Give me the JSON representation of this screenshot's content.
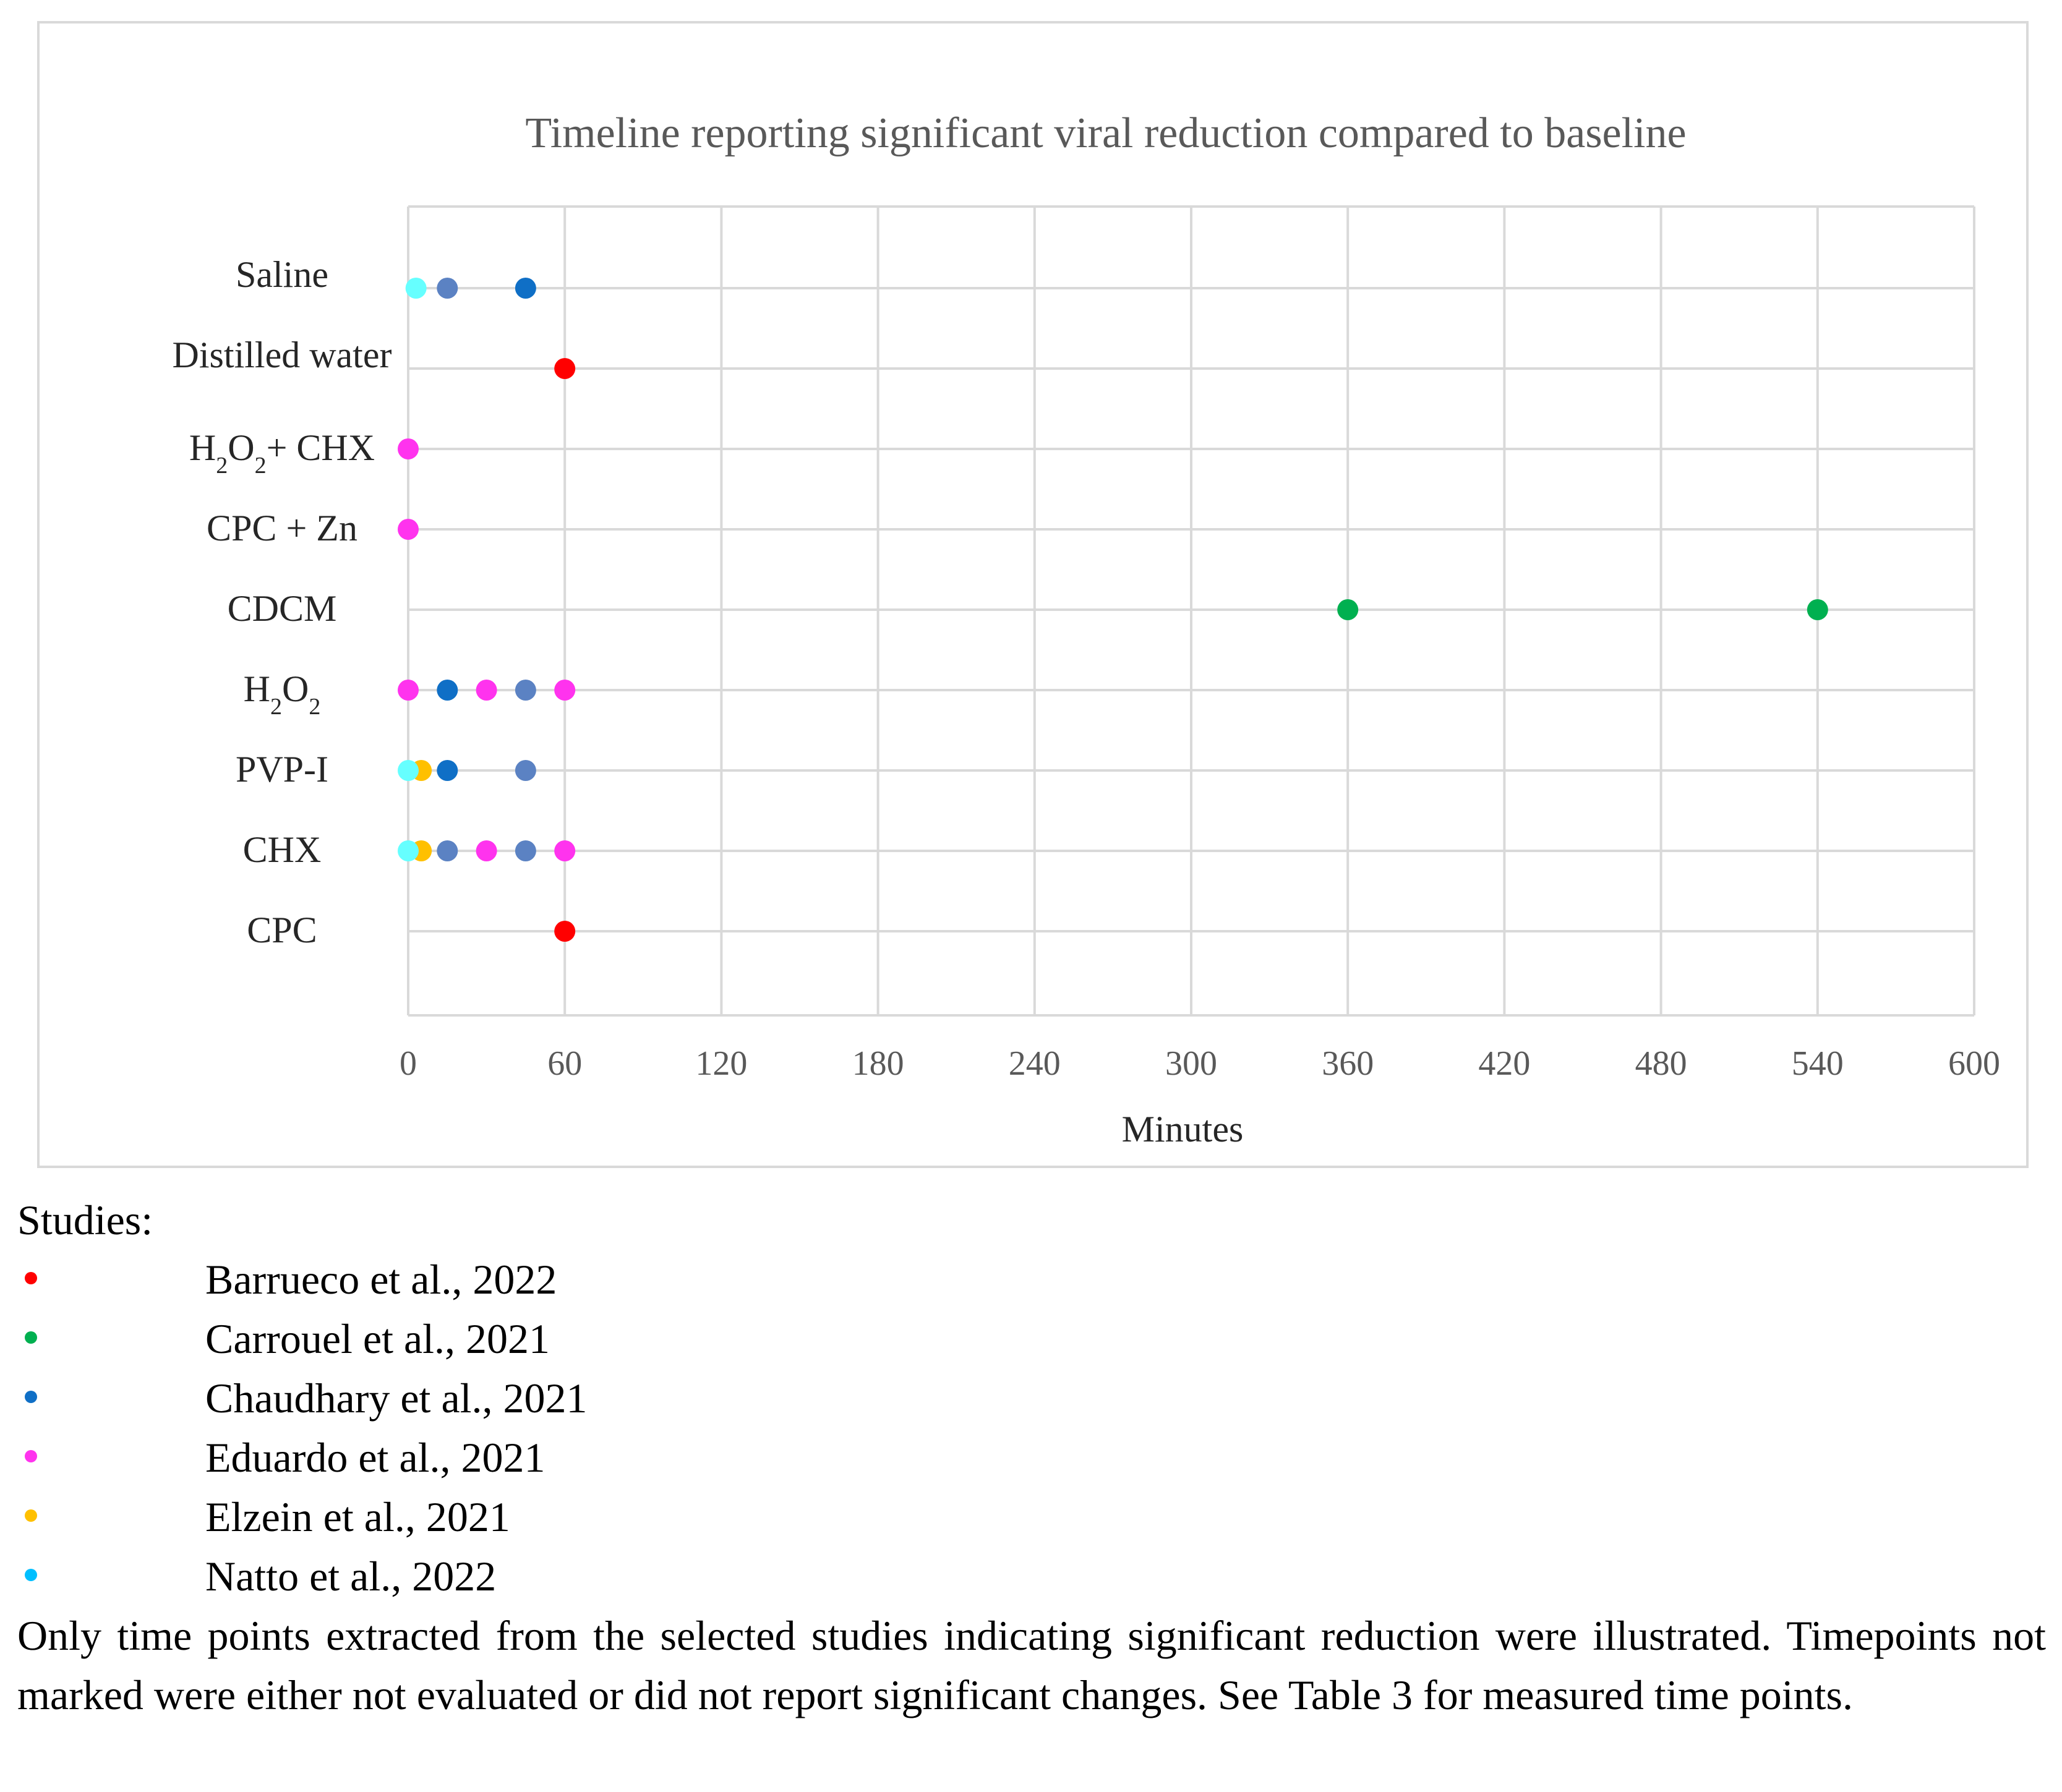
{
  "chart_data": {
    "type": "scatter",
    "title": "Timeline reporting significant viral reduction compared to baseline",
    "xlabel": "Minutes",
    "ylabel": "",
    "xlim": [
      0,
      600
    ],
    "x_ticks": [
      "0",
      "60",
      "120",
      "180",
      "240",
      "300",
      "360",
      "420",
      "480",
      "540",
      "600"
    ],
    "grid": true,
    "categories": [
      {
        "id": "saline",
        "label": "Saline"
      },
      {
        "id": "distilled",
        "label": "Distilled water"
      },
      {
        "id": "h2o2chx",
        "base": "H",
        "sub1": "2",
        "mid": "O",
        "sub2": "2",
        "tail": "+ CHX"
      },
      {
        "id": "cpczn",
        "label": "CPC + Zn"
      },
      {
        "id": "cdcm",
        "label": "CDCM"
      },
      {
        "id": "h2o2",
        "base": "H",
        "sub1": "2",
        "mid": "O",
        "sub2": "2",
        "tail": ""
      },
      {
        "id": "pvpi",
        "label": "PVP-I"
      },
      {
        "id": "chx",
        "label": "CHX"
      },
      {
        "id": "cpc",
        "label": "CPC"
      }
    ],
    "points": [
      {
        "category": "saline",
        "x": 3,
        "color": "#66ffff"
      },
      {
        "category": "saline",
        "x": 15,
        "color": "#5b82c3"
      },
      {
        "category": "saline",
        "x": 45,
        "color": "#0f6fc6"
      },
      {
        "category": "distilled",
        "x": 60,
        "color": "#ff0000"
      },
      {
        "category": "h2o2chx",
        "x": 0,
        "color": "#ff33ee"
      },
      {
        "category": "cpczn",
        "x": 0,
        "color": "#ff33ee"
      },
      {
        "category": "cdcm",
        "x": 360,
        "color": "#00b050"
      },
      {
        "category": "cdcm",
        "x": 540,
        "color": "#00b050"
      },
      {
        "category": "h2o2",
        "x": 0,
        "color": "#ff33ee"
      },
      {
        "category": "h2o2",
        "x": 15,
        "color": "#0f6fc6"
      },
      {
        "category": "h2o2",
        "x": 30,
        "color": "#ff33ee"
      },
      {
        "category": "h2o2",
        "x": 45,
        "color": "#5b82c3"
      },
      {
        "category": "h2o2",
        "x": 60,
        "color": "#ff33ee"
      },
      {
        "category": "pvpi",
        "x": 5,
        "color": "#ffc000"
      },
      {
        "category": "pvpi",
        "x": 0,
        "color": "#66ffff"
      },
      {
        "category": "pvpi",
        "x": 15,
        "color": "#0f6fc6"
      },
      {
        "category": "pvpi",
        "x": 45,
        "color": "#5b82c3"
      },
      {
        "category": "chx",
        "x": 5,
        "color": "#ffc000"
      },
      {
        "category": "chx",
        "x": 0,
        "color": "#66ffff"
      },
      {
        "category": "chx",
        "x": 15,
        "color": "#5b82c3"
      },
      {
        "category": "chx",
        "x": 30,
        "color": "#ff33ee"
      },
      {
        "category": "chx",
        "x": 45,
        "color": "#5b82c3"
      },
      {
        "category": "chx",
        "x": 60,
        "color": "#ff33ee"
      },
      {
        "category": "cpc",
        "x": 60,
        "color": "#ff0000"
      }
    ]
  },
  "caption": {
    "studies_heading": "Studies:",
    "legend": [
      {
        "label": "Barrueco et al., 2022",
        "color": "#ff0000"
      },
      {
        "label": "Carrouel et al., 2021",
        "color": "#00b050"
      },
      {
        "label": "Chaudhary et al., 2021",
        "color": "#0f6fc6"
      },
      {
        "label": "Eduardo et al., 2021",
        "color": "#ff33ee"
      },
      {
        "label": "Elzein et al., 2021",
        "color": "#ffc000"
      },
      {
        "label": "Natto et al., 2022",
        "color": "#00bfff"
      }
    ],
    "note": "Only time points extracted from the selected studies indicating significant reduction were illustrated. Timepoints not marked were either not evaluated or did not report significant changes. See Table 3 for measured time points."
  }
}
